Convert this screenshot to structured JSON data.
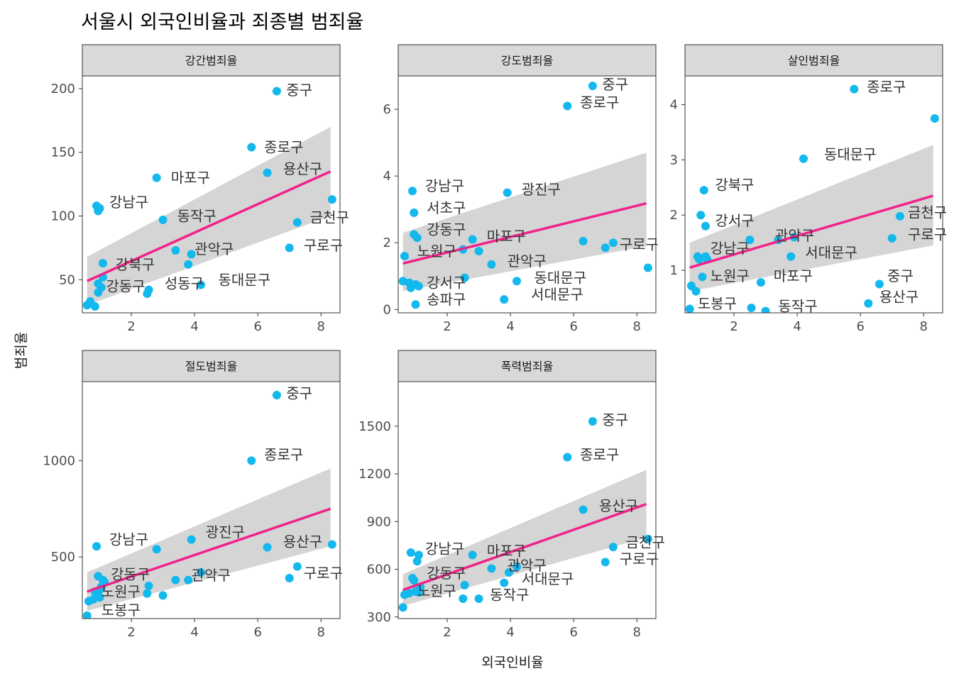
{
  "title": "서울시 외국인비율과 죄종별 범죄율",
  "colors": {
    "point": "#13B8EC",
    "trend": "#F0228A",
    "band": "#D3D3D3",
    "strip": "#D9D9D9",
    "panel_border": "#333333"
  },
  "chart_data": {
    "type": "scatter",
    "xlabel": "외국인비율",
    "ylabel": "범죄율",
    "legend": "none",
    "grid": false,
    "facets": [
      {
        "name": "강간범죄율",
        "xlim": [
          0.45,
          8.6
        ],
        "ylim": [
          24,
          210
        ],
        "yticks": [
          50,
          100,
          150,
          200
        ],
        "xticks": [
          2,
          4,
          6,
          8
        ],
        "trend": {
          "x": [
            0.6,
            8.3
          ],
          "y": [
            49,
            135
          ],
          "band_lo": [
            30,
            100
          ],
          "band_hi": [
            68,
            170
          ]
        },
        "points": [
          {
            "x": 0.6,
            "y": 30
          },
          {
            "x": 0.7,
            "y": 33
          },
          {
            "x": 0.85,
            "y": 29
          },
          {
            "x": 0.9,
            "y": 108
          },
          {
            "x": 0.95,
            "y": 104
          },
          {
            "x": 1.0,
            "y": 106
          },
          {
            "x": 0.95,
            "y": 40
          },
          {
            "x": 1.05,
            "y": 44
          },
          {
            "x": 1.1,
            "y": 52
          },
          {
            "x": 1.1,
            "y": 63
          },
          {
            "x": 0.95,
            "y": 47
          },
          {
            "x": 2.5,
            "y": 39
          },
          {
            "x": 2.55,
            "y": 42
          },
          {
            "x": 2.8,
            "y": 130
          },
          {
            "x": 3.0,
            "y": 97
          },
          {
            "x": 3.4,
            "y": 73
          },
          {
            "x": 3.8,
            "y": 62
          },
          {
            "x": 3.9,
            "y": 70
          },
          {
            "x": 4.2,
            "y": 46
          },
          {
            "x": 5.8,
            "y": 154
          },
          {
            "x": 6.3,
            "y": 134
          },
          {
            "x": 6.6,
            "y": 198
          },
          {
            "x": 7.0,
            "y": 75
          },
          {
            "x": 7.25,
            "y": 95
          },
          {
            "x": 8.35,
            "y": 113
          }
        ],
        "labels": [
          {
            "text": "중구",
            "x": 6.9,
            "y": 199
          },
          {
            "text": "종로구",
            "x": 6.2,
            "y": 154
          },
          {
            "text": "용산구",
            "x": 6.8,
            "y": 137
          },
          {
            "text": "마포구",
            "x": 3.25,
            "y": 130
          },
          {
            "text": "강남구",
            "x": 1.3,
            "y": 111
          },
          {
            "text": "금천구",
            "x": 7.65,
            "y": 99
          },
          {
            "text": "동작구",
            "x": 3.45,
            "y": 100
          },
          {
            "text": "관악구",
            "x": 4.0,
            "y": 74
          },
          {
            "text": "구로구",
            "x": 7.45,
            "y": 77
          },
          {
            "text": "강북구",
            "x": 1.5,
            "y": 62
          },
          {
            "text": "동대문구",
            "x": 4.75,
            "y": 50
          },
          {
            "text": "성동구",
            "x": 3.05,
            "y": 47
          },
          {
            "text": "강동구",
            "x": 1.2,
            "y": 45
          }
        ]
      },
      {
        "name": "강도범죄율",
        "xlim": [
          0.45,
          8.6
        ],
        "ylim": [
          -0.1,
          7.0
        ],
        "yticks": [
          0,
          2,
          4,
          6
        ],
        "xticks": [
          2,
          4,
          6,
          8
        ],
        "trend": {
          "x": [
            0.6,
            8.3
          ],
          "y": [
            1.38,
            3.18
          ],
          "band_lo": [
            0.55,
            1.9
          ],
          "band_hi": [
            2.3,
            4.7
          ]
        },
        "points": [
          {
            "x": 0.6,
            "y": 0.85
          },
          {
            "x": 0.65,
            "y": 1.6
          },
          {
            "x": 0.8,
            "y": 0.8
          },
          {
            "x": 0.85,
            "y": 0.65
          },
          {
            "x": 0.9,
            "y": 3.55
          },
          {
            "x": 0.95,
            "y": 2.9
          },
          {
            "x": 0.95,
            "y": 2.25
          },
          {
            "x": 1.0,
            "y": 0.75
          },
          {
            "x": 1.0,
            "y": 0.15
          },
          {
            "x": 1.05,
            "y": 2.15
          },
          {
            "x": 1.1,
            "y": 0.7
          },
          {
            "x": 2.5,
            "y": 1.8
          },
          {
            "x": 2.55,
            "y": 0.95
          },
          {
            "x": 2.8,
            "y": 2.1
          },
          {
            "x": 3.0,
            "y": 1.75
          },
          {
            "x": 3.4,
            "y": 1.35
          },
          {
            "x": 3.8,
            "y": 0.3
          },
          {
            "x": 3.9,
            "y": 3.5
          },
          {
            "x": 4.2,
            "y": 0.85
          },
          {
            "x": 5.8,
            "y": 6.1
          },
          {
            "x": 6.3,
            "y": 2.05
          },
          {
            "x": 6.6,
            "y": 6.7
          },
          {
            "x": 7.0,
            "y": 1.85
          },
          {
            "x": 7.25,
            "y": 2.0
          },
          {
            "x": 8.35,
            "y": 1.25
          }
        ],
        "labels": [
          {
            "text": "중구",
            "x": 6.9,
            "y": 6.75
          },
          {
            "text": "종로구",
            "x": 6.2,
            "y": 6.2
          },
          {
            "text": "강남구",
            "x": 1.3,
            "y": 3.7
          },
          {
            "text": "광진구",
            "x": 4.35,
            "y": 3.6
          },
          {
            "text": "서초구",
            "x": 1.35,
            "y": 3.05
          },
          {
            "text": "강동구",
            "x": 1.35,
            "y": 2.4
          },
          {
            "text": "마포구",
            "x": 3.25,
            "y": 2.2
          },
          {
            "text": "구로구",
            "x": 7.45,
            "y": 1.95
          },
          {
            "text": "노원구",
            "x": 1.05,
            "y": 1.75
          },
          {
            "text": "관악구",
            "x": 3.9,
            "y": 1.45
          },
          {
            "text": "동대문구",
            "x": 4.75,
            "y": 0.95
          },
          {
            "text": "강서구",
            "x": 1.35,
            "y": 0.8
          },
          {
            "text": "서대문구",
            "x": 4.65,
            "y": 0.45
          },
          {
            "text": "송파구",
            "x": 1.35,
            "y": 0.3
          }
        ]
      },
      {
        "name": "살인범죄율",
        "xlim": [
          0.45,
          8.6
        ],
        "ylim": [
          0.23,
          4.52
        ],
        "yticks": [
          1,
          2,
          3,
          4
        ],
        "xticks": [
          2,
          4,
          6,
          8
        ],
        "trend": {
          "x": [
            0.6,
            8.3
          ],
          "y": [
            1.05,
            2.35
          ],
          "band_lo": [
            0.62,
            1.45
          ],
          "band_hi": [
            1.5,
            3.27
          ]
        },
        "points": [
          {
            "x": 0.6,
            "y": 0.3
          },
          {
            "x": 0.65,
            "y": 0.72
          },
          {
            "x": 0.8,
            "y": 0.62
          },
          {
            "x": 0.85,
            "y": 1.25
          },
          {
            "x": 0.9,
            "y": 1.2
          },
          {
            "x": 0.95,
            "y": 2.0
          },
          {
            "x": 1.0,
            "y": 0.88
          },
          {
            "x": 1.05,
            "y": 2.45
          },
          {
            "x": 1.1,
            "y": 1.8
          },
          {
            "x": 1.15,
            "y": 1.2
          },
          {
            "x": 1.1,
            "y": 1.25
          },
          {
            "x": 2.5,
            "y": 1.55
          },
          {
            "x": 2.55,
            "y": 0.32
          },
          {
            "x": 2.85,
            "y": 0.78
          },
          {
            "x": 3.0,
            "y": 0.26
          },
          {
            "x": 3.4,
            "y": 1.55
          },
          {
            "x": 3.8,
            "y": 1.25
          },
          {
            "x": 3.9,
            "y": 1.6
          },
          {
            "x": 4.2,
            "y": 3.02
          },
          {
            "x": 5.8,
            "y": 4.28
          },
          {
            "x": 6.25,
            "y": 0.4
          },
          {
            "x": 6.6,
            "y": 0.75
          },
          {
            "x": 7.0,
            "y": 1.58
          },
          {
            "x": 7.25,
            "y": 1.98
          },
          {
            "x": 8.35,
            "y": 3.75
          }
        ],
        "labels": [
          {
            "text": "종로구",
            "x": 6.2,
            "y": 4.32
          },
          {
            "text": "동대문구",
            "x": 4.85,
            "y": 3.1
          },
          {
            "text": "강북구",
            "x": 1.4,
            "y": 2.55
          },
          {
            "text": "금천구",
            "x": 7.5,
            "y": 2.05
          },
          {
            "text": "강서구",
            "x": 1.4,
            "y": 1.9
          },
          {
            "text": "구로구",
            "x": 7.5,
            "y": 1.65
          },
          {
            "text": "관악구",
            "x": 3.3,
            "y": 1.63
          },
          {
            "text": "서대문구",
            "x": 4.25,
            "y": 1.32
          },
          {
            "text": "강남구",
            "x": 1.25,
            "y": 1.4
          },
          {
            "text": "노원구",
            "x": 1.25,
            "y": 0.9
          },
          {
            "text": "마포구",
            "x": 3.25,
            "y": 0.9
          },
          {
            "text": "중구",
            "x": 6.85,
            "y": 0.9
          },
          {
            "text": "도봉구",
            "x": 0.85,
            "y": 0.4
          },
          {
            "text": "용산구",
            "x": 6.6,
            "y": 0.52
          },
          {
            "text": "동작구",
            "x": 3.4,
            "y": 0.35
          }
        ]
      },
      {
        "name": "절도범죄율",
        "xlim": [
          0.45,
          8.6
        ],
        "ylim": [
          180,
          1410
        ],
        "yticks": [
          500,
          1000
        ],
        "xticks": [
          2,
          4,
          6,
          8
        ],
        "trend": {
          "x": [
            0.6,
            8.3
          ],
          "y": [
            320,
            750
          ],
          "band_lo": [
            220,
            555
          ],
          "band_hi": [
            420,
            960
          ]
        },
        "points": [
          {
            "x": 0.6,
            "y": 195
          },
          {
            "x": 0.65,
            "y": 270
          },
          {
            "x": 0.8,
            "y": 280
          },
          {
            "x": 0.85,
            "y": 320
          },
          {
            "x": 0.9,
            "y": 555
          },
          {
            "x": 0.95,
            "y": 400
          },
          {
            "x": 1.0,
            "y": 330
          },
          {
            "x": 1.05,
            "y": 345
          },
          {
            "x": 1.1,
            "y": 380
          },
          {
            "x": 1.15,
            "y": 370
          },
          {
            "x": 1.0,
            "y": 290
          },
          {
            "x": 2.5,
            "y": 310
          },
          {
            "x": 2.55,
            "y": 350
          },
          {
            "x": 2.8,
            "y": 540
          },
          {
            "x": 3.0,
            "y": 300
          },
          {
            "x": 3.4,
            "y": 380
          },
          {
            "x": 3.8,
            "y": 380
          },
          {
            "x": 3.9,
            "y": 590
          },
          {
            "x": 4.2,
            "y": 420
          },
          {
            "x": 5.8,
            "y": 1000
          },
          {
            "x": 6.3,
            "y": 550
          },
          {
            "x": 6.6,
            "y": 1340
          },
          {
            "x": 7.0,
            "y": 390
          },
          {
            "x": 7.25,
            "y": 450
          },
          {
            "x": 8.35,
            "y": 565
          }
        ],
        "labels": [
          {
            "text": "중구",
            "x": 6.9,
            "y": 1350
          },
          {
            "text": "종로구",
            "x": 6.2,
            "y": 1030
          },
          {
            "text": "강남구",
            "x": 1.3,
            "y": 590
          },
          {
            "text": "광진구",
            "x": 4.35,
            "y": 630
          },
          {
            "text": "용산구",
            "x": 6.8,
            "y": 580
          },
          {
            "text": "강동구",
            "x": 1.35,
            "y": 410
          },
          {
            "text": "관악구",
            "x": 3.9,
            "y": 405
          },
          {
            "text": "구로구",
            "x": 7.45,
            "y": 415
          },
          {
            "text": "노원구",
            "x": 1.05,
            "y": 320
          },
          {
            "text": "도봉구",
            "x": 1.05,
            "y": 225
          }
        ]
      },
      {
        "name": "폭력범죄율",
        "xlim": [
          0.45,
          8.6
        ],
        "ylim": [
          290,
          1780
        ],
        "yticks": [
          300,
          600,
          900,
          1200,
          1500
        ],
        "xticks": [
          2,
          4,
          6,
          8
        ],
        "trend": {
          "x": [
            0.6,
            8.3
          ],
          "y": [
            470,
            1010
          ],
          "band_lo": [
            370,
            800
          ],
          "band_hi": [
            570,
            1225
          ]
        },
        "points": [
          {
            "x": 0.6,
            "y": 360
          },
          {
            "x": 0.65,
            "y": 440
          },
          {
            "x": 0.8,
            "y": 450
          },
          {
            "x": 0.85,
            "y": 705
          },
          {
            "x": 0.9,
            "y": 545
          },
          {
            "x": 0.95,
            "y": 530
          },
          {
            "x": 1.0,
            "y": 460
          },
          {
            "x": 1.05,
            "y": 650
          },
          {
            "x": 1.1,
            "y": 690
          },
          {
            "x": 1.1,
            "y": 455
          },
          {
            "x": 1.15,
            "y": 490
          },
          {
            "x": 2.5,
            "y": 415
          },
          {
            "x": 2.55,
            "y": 500
          },
          {
            "x": 2.8,
            "y": 690
          },
          {
            "x": 3.0,
            "y": 415
          },
          {
            "x": 3.4,
            "y": 605
          },
          {
            "x": 3.8,
            "y": 515
          },
          {
            "x": 3.95,
            "y": 580
          },
          {
            "x": 4.2,
            "y": 615
          },
          {
            "x": 5.8,
            "y": 1305
          },
          {
            "x": 6.3,
            "y": 975
          },
          {
            "x": 6.6,
            "y": 1530
          },
          {
            "x": 7.0,
            "y": 645
          },
          {
            "x": 7.25,
            "y": 740
          },
          {
            "x": 8.35,
            "y": 790
          }
        ],
        "labels": [
          {
            "text": "중구",
            "x": 6.9,
            "y": 1540
          },
          {
            "text": "종로구",
            "x": 6.2,
            "y": 1320
          },
          {
            "text": "용산구",
            "x": 6.8,
            "y": 1000
          },
          {
            "text": "금천구",
            "x": 7.65,
            "y": 770
          },
          {
            "text": "강남구",
            "x": 1.3,
            "y": 730
          },
          {
            "text": "마포구",
            "x": 3.25,
            "y": 715
          },
          {
            "text": "구로구",
            "x": 7.45,
            "y": 665
          },
          {
            "text": "관악구",
            "x": 3.9,
            "y": 625
          },
          {
            "text": "강동구",
            "x": 1.35,
            "y": 575
          },
          {
            "text": "서대문구",
            "x": 4.35,
            "y": 540
          },
          {
            "text": "노원구",
            "x": 1.05,
            "y": 465
          },
          {
            "text": "동작구",
            "x": 3.35,
            "y": 440
          }
        ]
      }
    ]
  }
}
